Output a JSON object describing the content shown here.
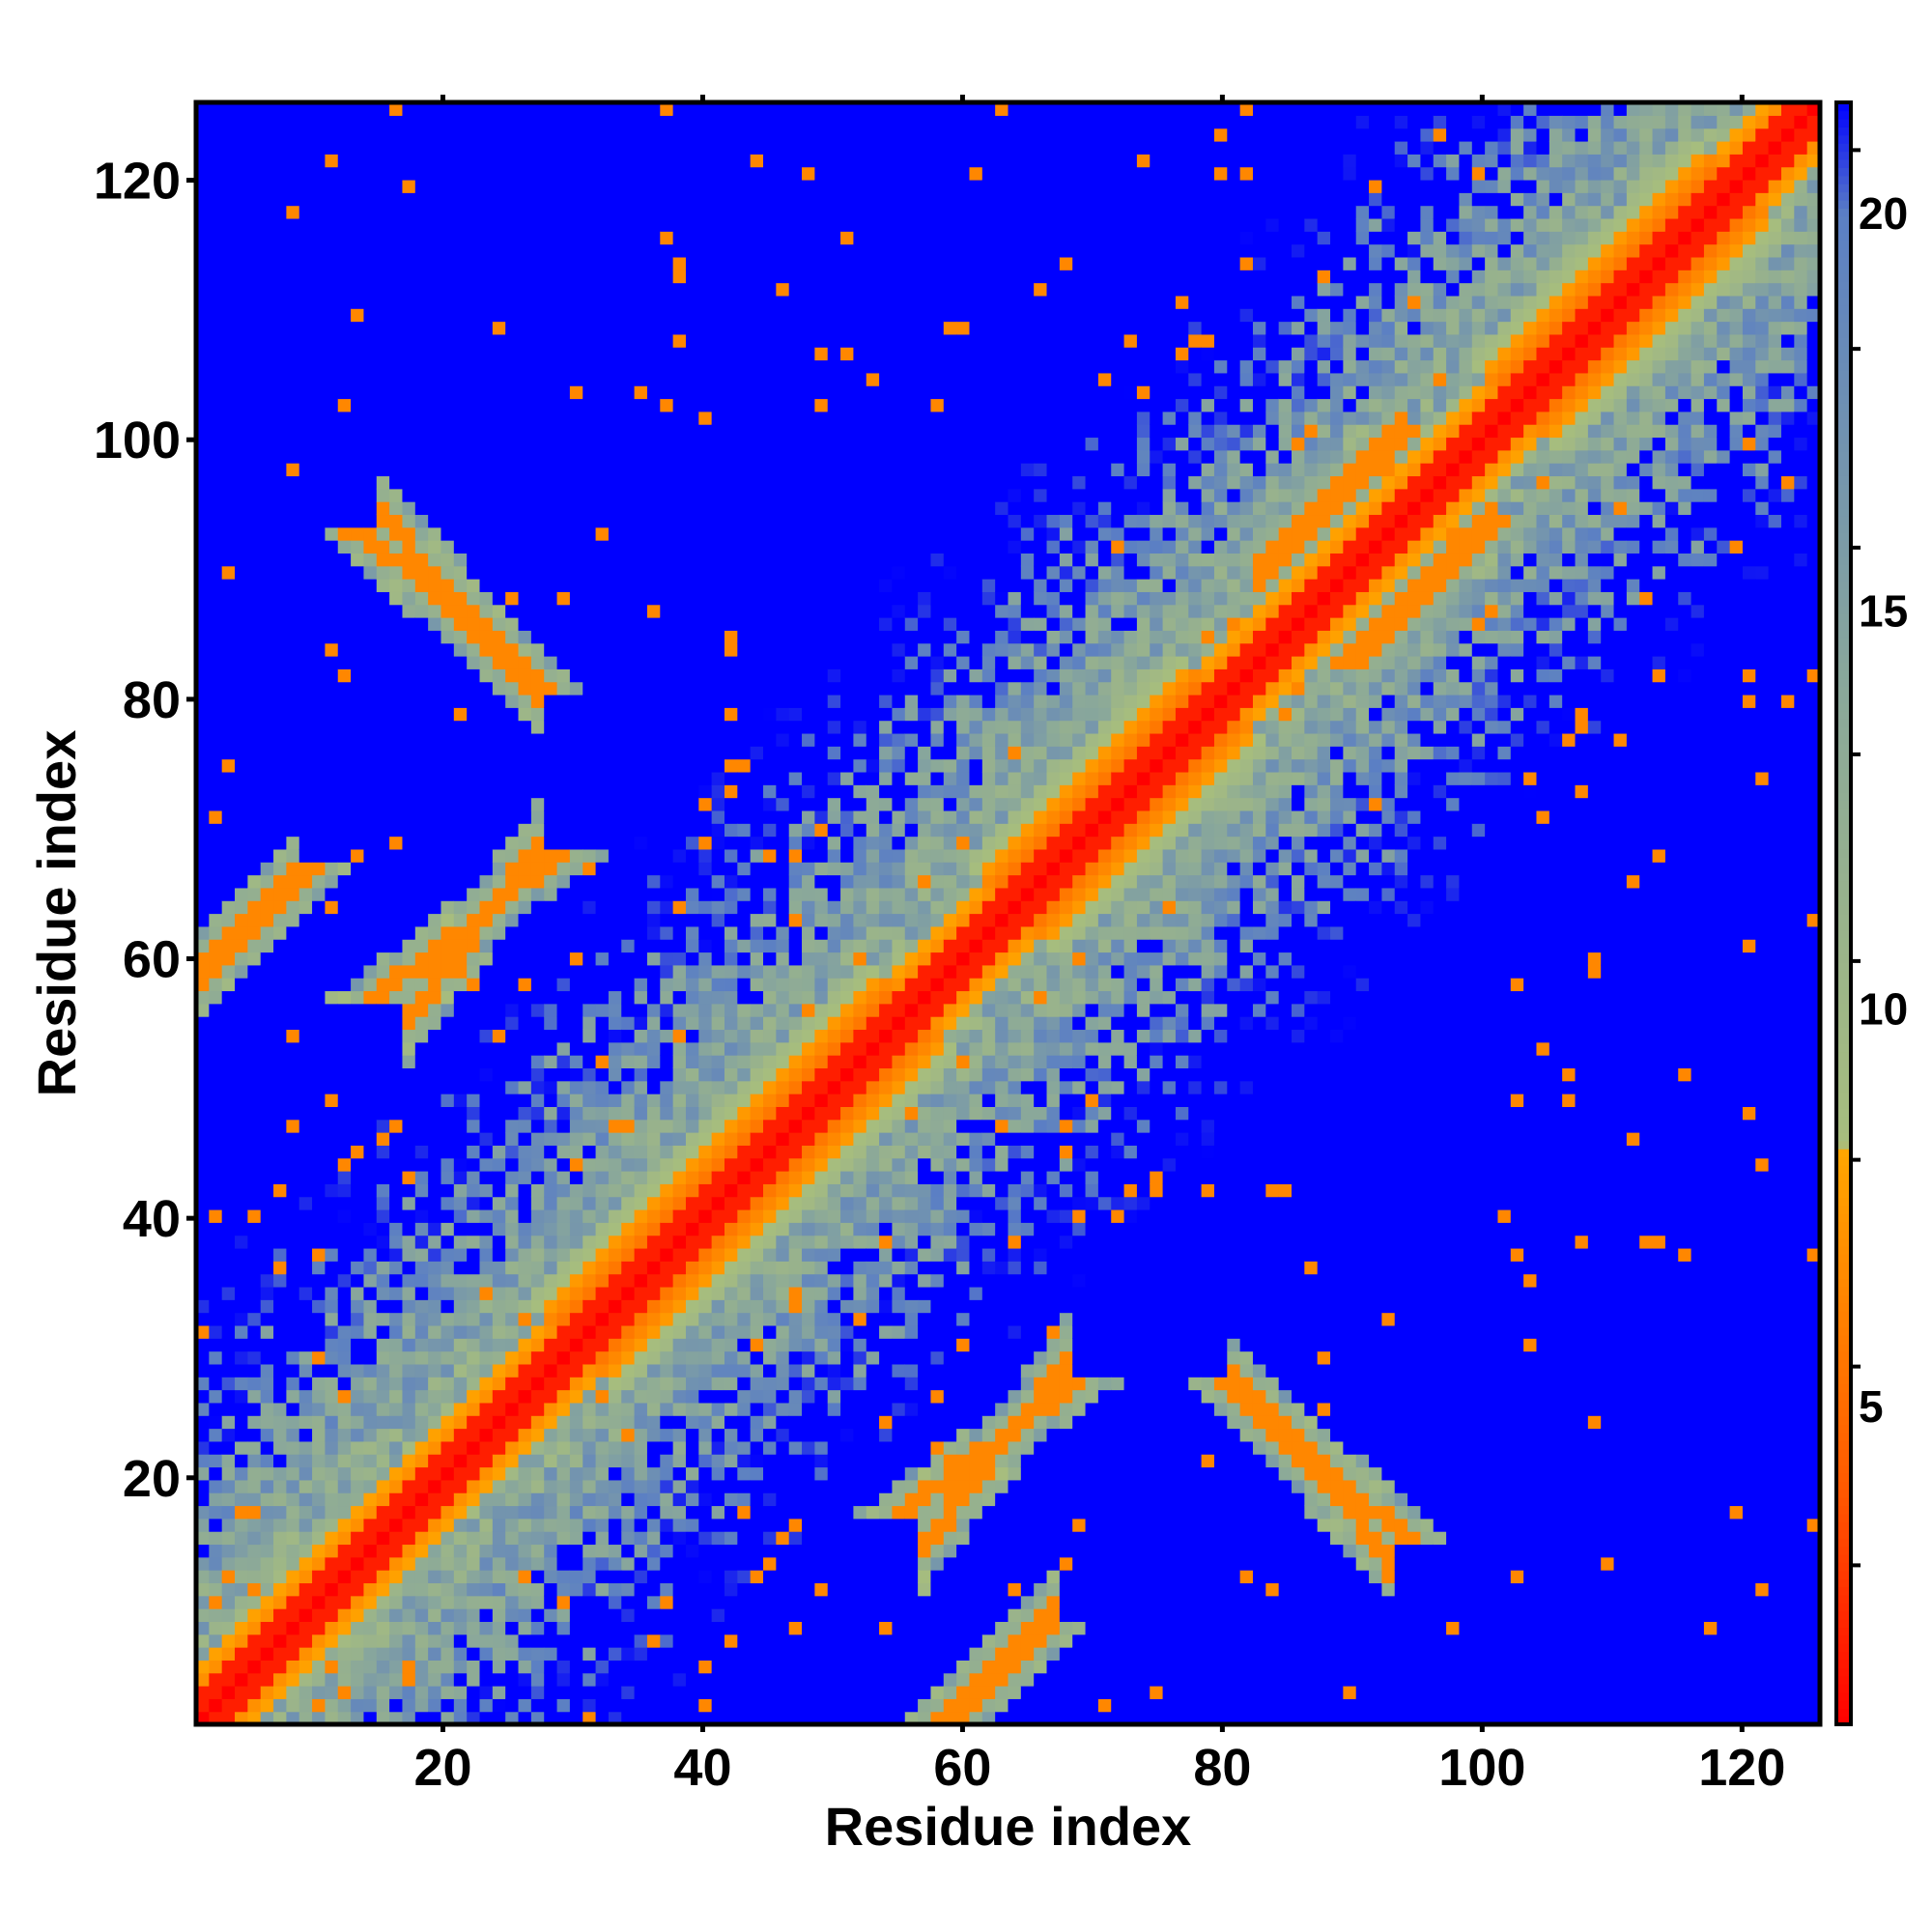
{
  "chart_data": {
    "type": "heatmap",
    "title": "",
    "xlabel": "Residue index",
    "ylabel": "Residue index",
    "n_residues": 126,
    "xlim": [
      1,
      126
    ],
    "ylim": [
      1,
      126
    ],
    "x_ticks": [
      20,
      40,
      60,
      80,
      100,
      120
    ],
    "y_ticks": [
      20,
      40,
      60,
      80,
      100,
      120
    ],
    "colorbar": {
      "ticks": [
        5,
        10,
        15,
        20
      ],
      "range": [
        1,
        21.4
      ],
      "stops": [
        {
          "value": 1,
          "color": "#ff0000"
        },
        {
          "value": 4,
          "color": "#ff5a00"
        },
        {
          "value": 8.2,
          "color": "#ffa500"
        },
        {
          "value": 8.3,
          "color": "#a7bd7e"
        },
        {
          "value": 14,
          "color": "#8aa89a"
        },
        {
          "value": 20,
          "color": "#5b7fc4"
        },
        {
          "value": 21.4,
          "color": "#0000ff"
        }
      ]
    },
    "threshold_cap": 21.4,
    "contact_features": [
      {
        "kind": "diagonal",
        "from": 1,
        "to": 126,
        "description": "main diagonal, distance < 3"
      },
      {
        "kind": "parallel_band",
        "center": 47,
        "span": [
          30,
          56
        ],
        "description": "helix-like thickened diagonal"
      },
      {
        "kind": "parallel_band",
        "center": 75,
        "span": [
          64,
          80
        ]
      },
      {
        "kind": "parallel_band",
        "center": 110,
        "span": [
          103,
          120
        ]
      },
      {
        "kind": "antiparallel",
        "i": [
          17,
          25
        ],
        "j": [
          92,
          83
        ]
      },
      {
        "kind": "antiparallel",
        "i": [
          19,
          25
        ],
        "j": [
          58,
          66
        ]
      },
      {
        "kind": "antiparallel",
        "i": [
          2,
          6
        ],
        "j": [
          60,
          64
        ]
      },
      {
        "kind": "antiparallel",
        "i": [
          85,
          92
        ],
        "j": [
          92,
          99
        ]
      },
      {
        "kind": "cross_contact",
        "i": [
          83,
          91
        ],
        "j": [
          25,
          16
        ]
      },
      {
        "kind": "cross_contact",
        "i": [
          59,
          66
        ],
        "j": [
          17,
          26
        ]
      },
      {
        "kind": "cross_contact",
        "i": [
          60,
          65
        ],
        "j": [
          2,
          7
        ]
      }
    ]
  }
}
